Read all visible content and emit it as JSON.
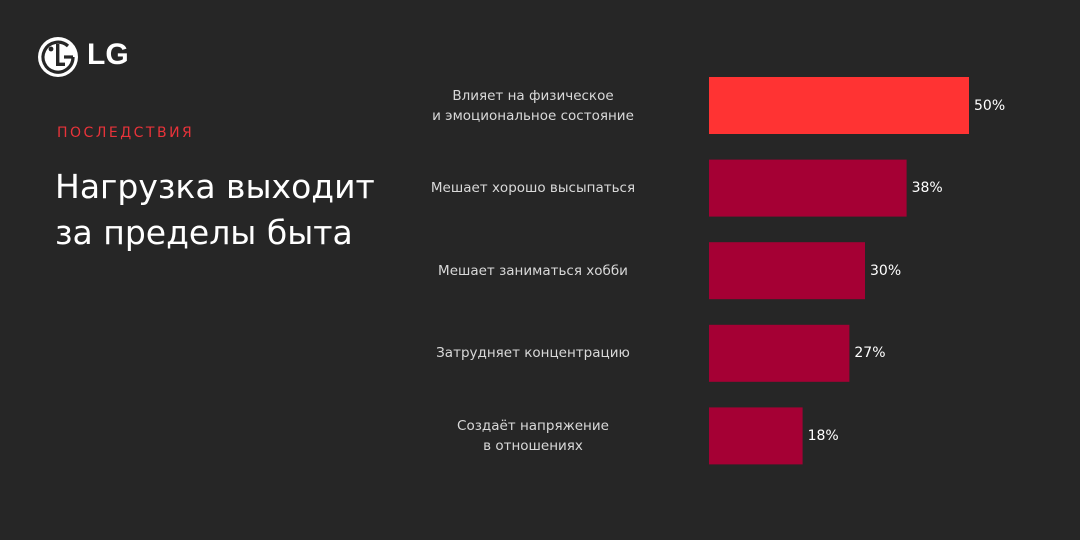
{
  "logo_text": "LG",
  "chart_data": {
    "type": "bar",
    "orientation": "horizontal",
    "subtitle": "ПОСЛЕДСТВИЯ",
    "title": "Нагрузка выходит\nза пределы быта",
    "categories": [
      "Влияет на физическое\nи эмоциональное состояние",
      "Мешает хорошо высыпаться",
      "Мешает заниматься хобби",
      "Затрудняет концентрацию",
      "Создаёт напряжение\nв отношениях"
    ],
    "values": [
      50,
      38,
      30,
      27,
      18
    ],
    "value_labels": [
      "50%",
      "38%",
      "30%",
      "27%",
      "18%"
    ],
    "colors": [
      "#ff3333",
      "#a50034",
      "#a50034",
      "#a50034",
      "#a50034"
    ]
  }
}
